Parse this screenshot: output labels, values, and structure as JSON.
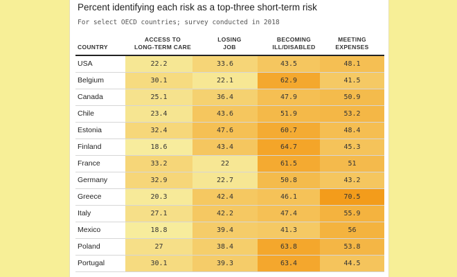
{
  "chart_data": {
    "type": "table",
    "title": "Percent identifying each risk as a top-three short-term risk",
    "subtitle": "For select OECD countries; survey conducted in 2018",
    "columns": [
      "COUNTRY",
      "ACCESS TO LONG-TERM CARE",
      "LOSING JOB",
      "BECOMING ILL/DISABLED",
      "MEETING EXPENSES"
    ],
    "column_lines": [
      [
        "COUNTRY"
      ],
      [
        "ACCESS TO",
        "LONG-TERM CARE"
      ],
      [
        "LOSING",
        "JOB"
      ],
      [
        "BECOMING",
        "ILL/DISABLED"
      ],
      [
        "MEETING",
        "EXPENSES"
      ]
    ],
    "rows": [
      {
        "country": "USA",
        "values": [
          "22.2",
          "33.6",
          "43.5",
          "48.1"
        ]
      },
      {
        "country": "Belgium",
        "values": [
          "30.1",
          "22.1",
          "62.9",
          "41.5"
        ]
      },
      {
        "country": "Canada",
        "values": [
          "25.1",
          "36.4",
          "47.9",
          "50.9"
        ]
      },
      {
        "country": "Chile",
        "values": [
          "23.4",
          "43.6",
          "51.9",
          "53.2"
        ]
      },
      {
        "country": "Estonia",
        "values": [
          "32.4",
          "47.6",
          "60.7",
          "48.4"
        ]
      },
      {
        "country": "Finland",
        "values": [
          "18.6",
          "43.4",
          "64.7",
          "45.3"
        ]
      },
      {
        "country": "France",
        "values": [
          "33.2",
          "22",
          "61.5",
          "51"
        ]
      },
      {
        "country": "Germany",
        "values": [
          "32.9",
          "22.7",
          "50.8",
          "43.2"
        ]
      },
      {
        "country": "Greece",
        "values": [
          "20.3",
          "42.4",
          "46.1",
          "70.5"
        ]
      },
      {
        "country": "Italy",
        "values": [
          "27.1",
          "42.2",
          "47.4",
          "55.9"
        ]
      },
      {
        "country": "Mexico",
        "values": [
          "18.8",
          "39.4",
          "41.3",
          "56"
        ]
      },
      {
        "country": "Poland",
        "values": [
          "27",
          "38.4",
          "63.8",
          "53.8"
        ]
      },
      {
        "country": "Portugal",
        "values": [
          "30.1",
          "39.3",
          "63.4",
          "44.5"
        ]
      }
    ],
    "color_scale": {
      "low": "#f7f2a6",
      "high": "#f39a17"
    }
  }
}
